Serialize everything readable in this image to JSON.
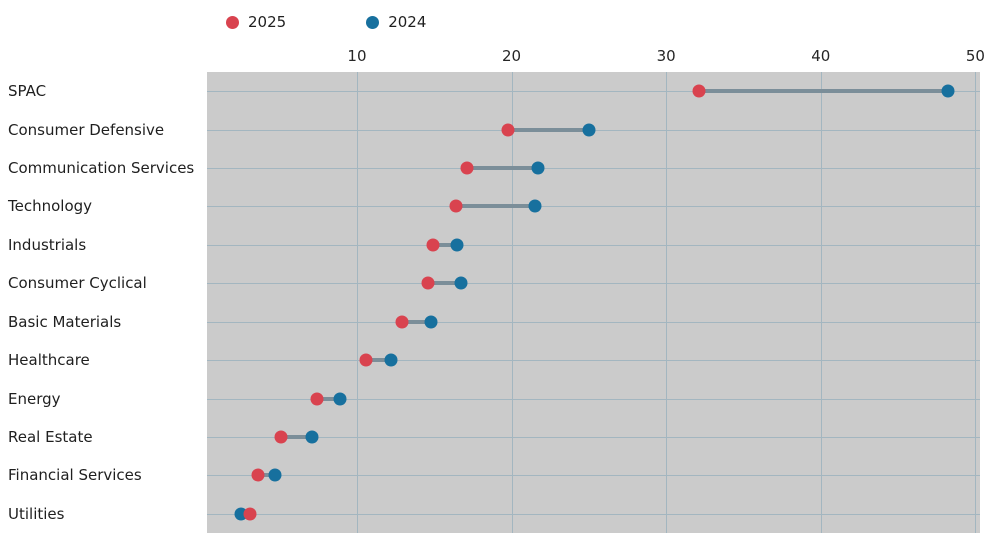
{
  "colors": {
    "series_2025": "#d9434f",
    "series_2024": "#17709e",
    "connector": "#7b8e99"
  },
  "chart_data": {
    "type": "scatter",
    "subtype": "dumbbell",
    "title": "",
    "xlabel": "",
    "ylabel": "",
    "categories": [
      "SPAC",
      "Consumer Defensive",
      "Communication Services",
      "Technology",
      "Industrials",
      "Consumer Cyclical",
      "Basic Materials",
      "Healthcare",
      "Energy",
      "Real Estate",
      "Financial Services",
      "Utilities"
    ],
    "series": [
      {
        "name": "2025",
        "values": [
          32.1,
          19.8,
          17.1,
          16.4,
          14.9,
          14.6,
          12.9,
          10.6,
          7.4,
          5.1,
          3.6,
          3.1
        ]
      },
      {
        "name": "2024",
        "values": [
          48.2,
          25.0,
          21.7,
          21.5,
          16.5,
          16.7,
          14.8,
          12.2,
          8.9,
          7.1,
          4.7,
          2.5
        ]
      }
    ],
    "xlim": [
      0.3,
      50.3
    ],
    "xticks": [
      "10",
      "20",
      "30",
      "40",
      "50"
    ],
    "grid": true,
    "legend_position": "top",
    "axis_position": "top"
  }
}
